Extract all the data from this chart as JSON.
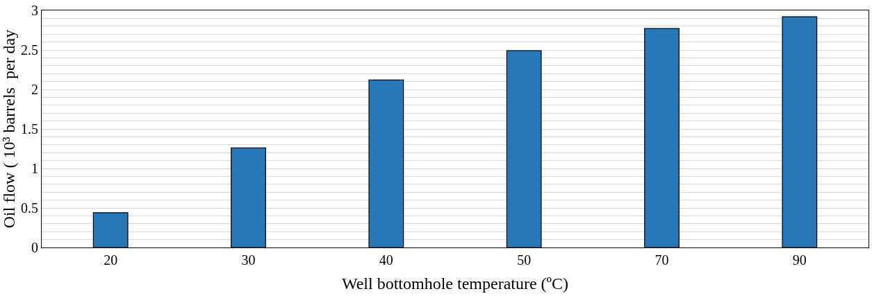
{
  "chart_data": {
    "type": "bar",
    "xlabel": "Well bottomhole temperature (ºC)",
    "ylabel": "Oil flow ( 10³ barrels  per day",
    "categories": [
      "20",
      "30",
      "40",
      "50",
      "70",
      "90"
    ],
    "series": [
      {
        "color": "#2878b8",
        "values": [
          0.44,
          1.26,
          2.12,
          2.49,
          2.77,
          2.92
        ]
      }
    ],
    "ylim": [
      0,
      3
    ],
    "yticks": [
      0,
      {
        "value": 0.1,
        "label": null
      },
      {
        "value": 0.2,
        "label": null
      },
      {
        "value": 0.3,
        "label": null
      },
      {
        "value": 0.4,
        "label": null
      },
      0.5,
      {
        "value": 0.6,
        "label": null
      },
      {
        "value": 0.7,
        "label": null
      },
      {
        "value": 0.8,
        "label": null
      },
      {
        "value": 0.9,
        "label": null
      },
      1,
      {
        "value": 1.1,
        "label": null
      },
      {
        "value": 1.2,
        "label": null
      },
      {
        "value": 1.3,
        "label": null
      },
      {
        "value": 1.4,
        "label": null
      },
      1.5,
      {
        "value": 1.6,
        "label": null
      },
      {
        "value": 1.7,
        "label": null
      },
      {
        "value": 1.8,
        "label": null
      },
      {
        "value": 1.9,
        "label": null
      },
      2,
      {
        "value": 2.1,
        "label": null
      },
      {
        "value": 2.2,
        "label": null
      },
      {
        "value": 2.3,
        "label": null
      },
      {
        "value": 2.4,
        "label": null
      },
      2.5,
      {
        "value": 2.6,
        "label": null
      },
      {
        "value": 2.7,
        "label": null
      },
      {
        "value": 2.8,
        "label": null
      },
      {
        "value": 2.9,
        "label": null
      },
      3
    ],
    "grid": "y"
  }
}
